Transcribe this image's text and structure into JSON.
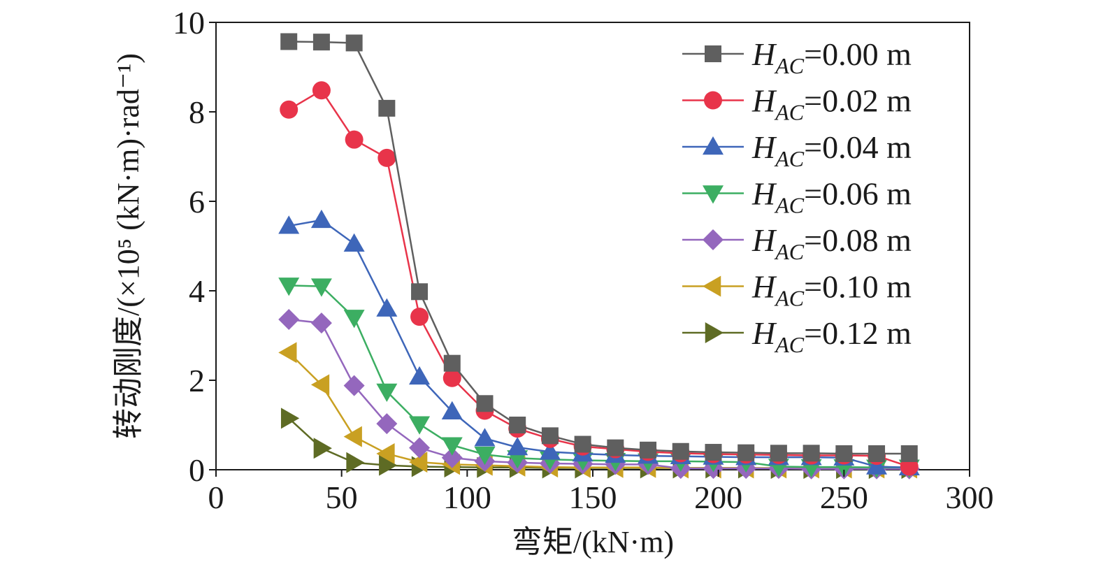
{
  "chart_data": {
    "type": "line",
    "xlabel": "弯矩/(kN·m)",
    "ylabel": "转动刚度/(×10⁵ (kN·m)·rad⁻¹)",
    "xlim": [
      0,
      300
    ],
    "ylim": [
      0,
      10
    ],
    "xticks": [
      0,
      50,
      100,
      150,
      200,
      250,
      300
    ],
    "yticks": [
      0,
      2,
      4,
      6,
      8,
      10
    ],
    "grid": false,
    "legend_position": "top-right",
    "x": [
      29,
      42,
      55,
      68,
      81,
      94,
      107,
      120,
      133,
      146,
      159,
      172,
      185,
      198,
      211,
      224,
      237,
      250,
      263,
      276
    ],
    "series": [
      {
        "name": "H_AC=0.00 m",
        "label_main": "H",
        "label_sub": "AC",
        "label_rest": "=0.00 m",
        "color": "#5f5f5f",
        "marker": "square",
        "values": [
          9.57,
          9.56,
          9.54,
          8.08,
          3.98,
          2.38,
          1.48,
          1.0,
          0.76,
          0.57,
          0.49,
          0.44,
          0.41,
          0.39,
          0.38,
          0.37,
          0.37,
          0.36,
          0.36,
          0.36
        ]
      },
      {
        "name": "H_AC=0.02 m",
        "label_main": "H",
        "label_sub": "AC",
        "label_rest": "=0.02 m",
        "color": "#e8344a",
        "marker": "circle",
        "values": [
          8.05,
          8.48,
          7.38,
          6.97,
          3.42,
          2.05,
          1.32,
          0.92,
          0.69,
          0.52,
          0.46,
          0.4,
          0.37,
          0.35,
          0.34,
          0.33,
          0.32,
          0.32,
          0.31,
          0.07
        ]
      },
      {
        "name": "H_AC=0.04 m",
        "label_main": "H",
        "label_sub": "AC",
        "label_rest": "=0.04 m",
        "color": "#3e66b9",
        "marker": "triangle-up",
        "values": [
          5.45,
          5.58,
          5.05,
          3.6,
          2.08,
          1.3,
          0.7,
          0.5,
          0.4,
          0.36,
          0.33,
          0.31,
          0.3,
          0.29,
          0.28,
          0.28,
          0.28,
          0.27,
          0.07,
          0.05
        ]
      },
      {
        "name": "H_AC=0.06 m",
        "label_main": "H",
        "label_sub": "AC",
        "label_rest": "=0.06 m",
        "color": "#3cae62",
        "marker": "triangle-down",
        "values": [
          4.12,
          4.1,
          3.4,
          1.75,
          1.02,
          0.55,
          0.34,
          0.26,
          0.23,
          0.21,
          0.2,
          0.19,
          0.19,
          0.18,
          0.17,
          0.07,
          0.06,
          0.06,
          0.05,
          0.05
        ]
      },
      {
        "name": "H_AC=0.08 m",
        "label_main": "H",
        "label_sub": "AC",
        "label_rest": "=0.08 m",
        "color": "#9467bd",
        "marker": "diamond",
        "values": [
          3.36,
          3.28,
          1.88,
          1.03,
          0.49,
          0.27,
          0.19,
          0.16,
          0.14,
          0.13,
          0.12,
          0.12,
          0.03,
          0.03,
          0.03,
          0.03,
          0.02,
          0.02,
          0.02,
          0.02
        ]
      },
      {
        "name": "H_AC=0.10 m",
        "label_main": "H",
        "label_sub": "AC",
        "label_rest": "=0.10 m",
        "color": "#c9a022",
        "marker": "triangle-left",
        "values": [
          2.62,
          1.9,
          0.74,
          0.36,
          0.17,
          0.12,
          0.1,
          0.08,
          0.06,
          0.05,
          0.05,
          0.05,
          0.04,
          0.04,
          0.04,
          0.04,
          0.04,
          0.04,
          0.04,
          0.04
        ]
      },
      {
        "name": "H_AC=0.12 m",
        "label_main": "H",
        "label_sub": "AC",
        "label_rest": "=0.12 m",
        "color": "#5e6b24",
        "marker": "triangle-right",
        "values": [
          1.15,
          0.48,
          0.16,
          0.1,
          0.07,
          0.06,
          0.05,
          0.05,
          0.04,
          0.04,
          0.04,
          0.04,
          0.04,
          0.04,
          0.04,
          0.03,
          0.03,
          0.03,
          0.03,
          0.03
        ]
      }
    ]
  }
}
